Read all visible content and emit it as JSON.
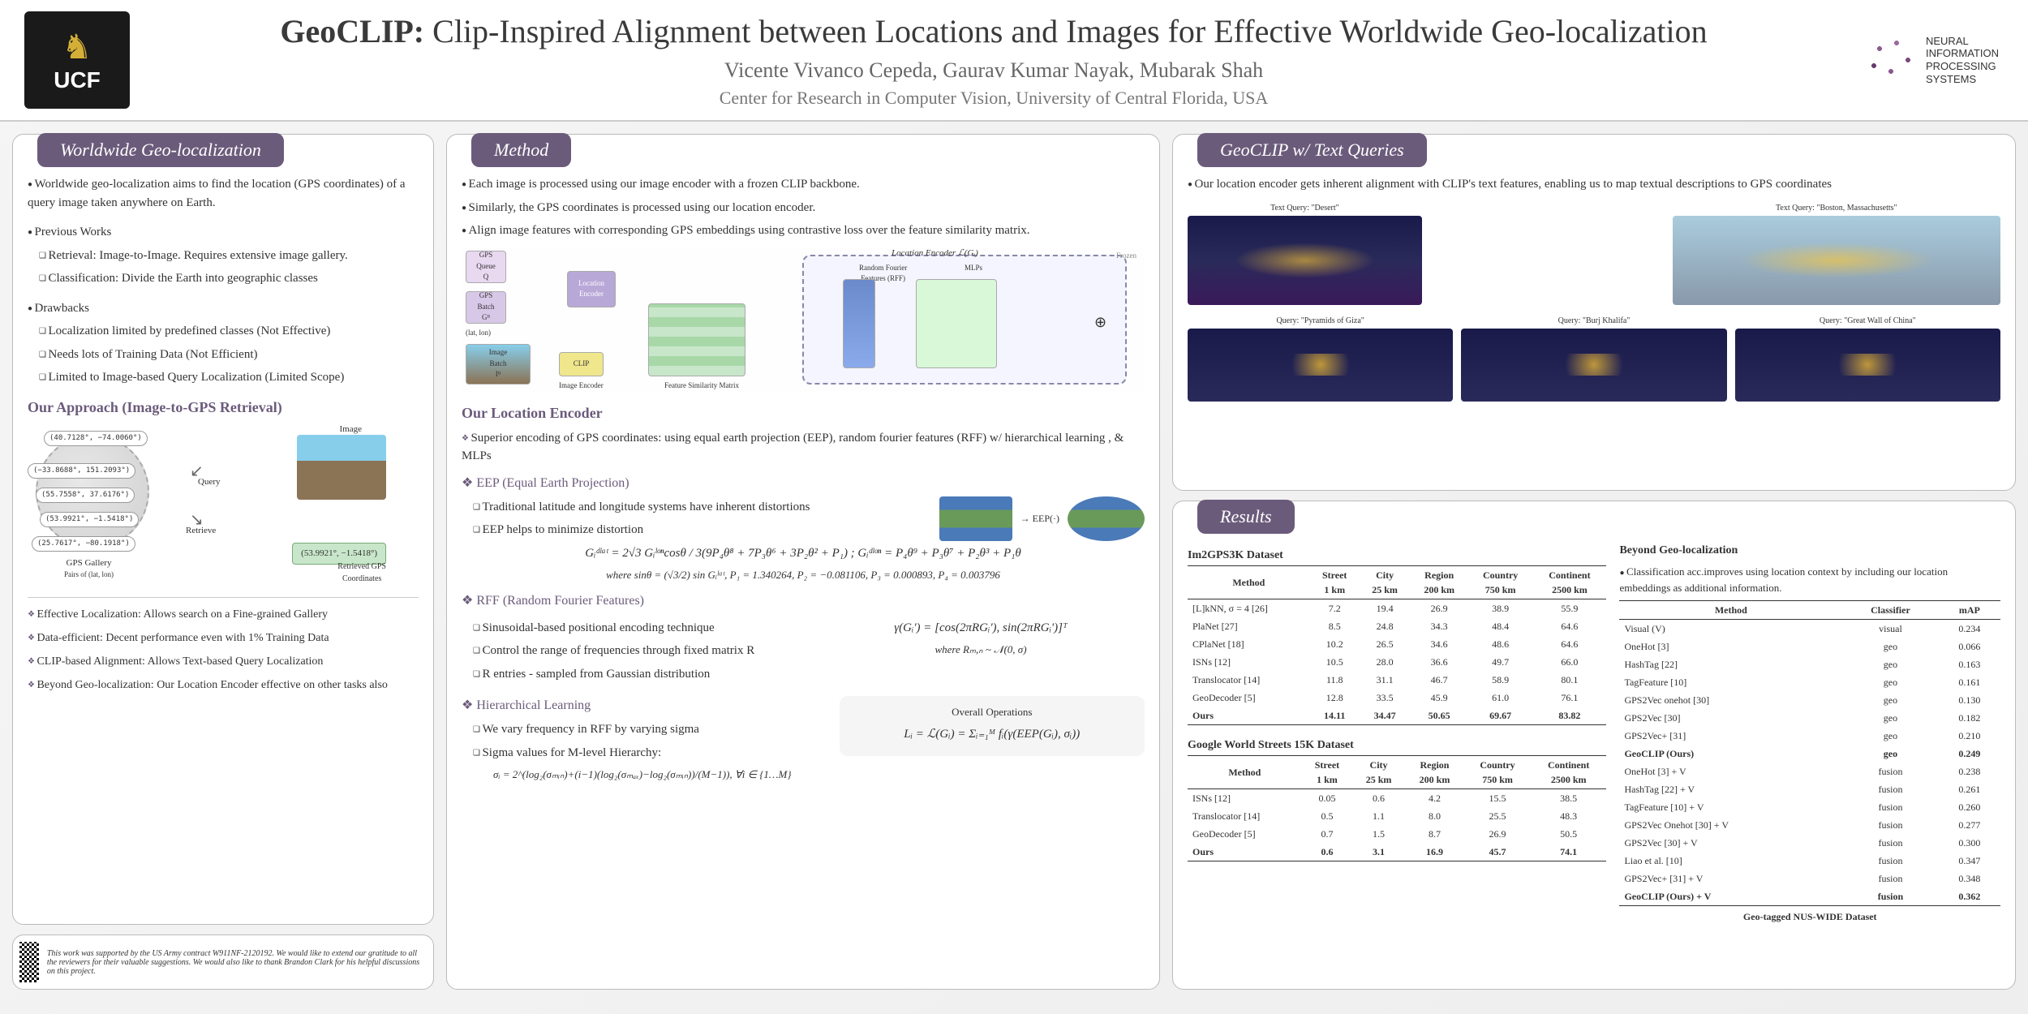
{
  "header": {
    "title_bold": "GeoCLIP:",
    "title_rest": " Clip-Inspired Alignment between Locations and Images for Effective Worldwide Geo-localization",
    "authors": "Vicente Vivanco Cepeda, Gaurav Kumar Nayak, Mubarak Shah",
    "affiliation": "Center for Research in Computer Vision, University of Central Florida, USA",
    "ucf_label": "UCF",
    "neurips": "NEURAL\nINFORMATION\nPROCESSING\nSYSTEMS"
  },
  "panels": {
    "geoloc": {
      "title": "Worldwide Geo-localization",
      "intro": "Worldwide geo-localization aims to  find  the location (GPS coordinates) of a query image taken anywhere on Earth.",
      "prev_works_label": "Previous Works",
      "prev_works": [
        "Retrieval: Image-to-Image. Requires extensive image gallery.",
        "Classification: Divide the Earth into geographic classes"
      ],
      "drawbacks_label": "Drawbacks",
      "drawbacks": [
        "Localization limited by predefined classes (Not Effective)",
        "Needs lots of Training Data (Not Efficient)",
        "Limited to Image-based Query Localization (Limited Scope)"
      ],
      "approach_title": "Our Approach (Image-to-GPS Retrieval)",
      "coords": [
        "(40.7128°, −74.0060°)",
        "(−33.8688°, 151.2093°)",
        "(55.7558°, 37.6176°)",
        "(53.9921°, −1.5418°)",
        "(25.7617°, −80.1918°)"
      ],
      "gps_gallery": "GPS Gallery",
      "pairs": "Pairs of (lat, lon)",
      "image_label": "Image",
      "query_label": "Query",
      "retrieve_label": "Retrieve",
      "retrieved": "(53.9921°, −1.5418°)",
      "retrieved_label": "Retrieved GPS\nCoordinates",
      "highlights": [
        "Effective Localization: Allows search on a Fine-grained Gallery",
        "Data-efficient: Decent performance even with 1% Training Data",
        "CLIP-based Alignment: Allows Text-based Query Localization",
        "Beyond Geo-localization:  Our Location Encoder effective on other tasks also"
      ]
    },
    "method": {
      "title": "Method",
      "bullets": [
        "Each image is processed using our image encoder with a frozen CLIP  backbone.",
        "Similarly, the GPS coordinates is processed using our location encoder.",
        "Align image features with corresponding GPS embeddings using contrastive loss over the feature similarity matrix."
      ],
      "diagram_labels": {
        "gps_queue": "GPS\nQueue\nQ",
        "gps_batch": "GPS\nBatch\nGᴮ",
        "latlon": "(lat, lon)",
        "loc_enc": "Location\nEncoder",
        "img_batch": "Image\nBatch\nIᴮ",
        "clip": "CLIP",
        "img_enc": "Image Encoder",
        "fsm": "Feature Similarity Matrix",
        "loc_enc_title": "Location Encoder  ℒ(Gᵢ)",
        "rff": "Random Fourier\nFeatures (RFF)",
        "mlps": "MLPs",
        "frozen": "Frozen"
      },
      "loc_encoder_title": "Our Location Encoder",
      "loc_encoder_desc": "Superior encoding of GPS coordinates: using equal earth projection (EEP), random fourier features (RFF) w/ hierarchical learning , & MLPs",
      "eep_title": "EEP (Equal Earth Projection)",
      "eep_bullets": [
        "Traditional latitude and longitude systems have inherent distortions",
        "EEP helps to minimize distortion"
      ],
      "eep_arrow": "EEP(·)",
      "eep_formula": "Gᵢᵈˡᵃᵗ = 2√3 Gᵢˡᵒⁿcosθ / 3(9P₄θ⁸ + 7P₃θ⁶ + 3P₂θ² + P₁) ;  Gᵢᵈˡᵒⁿ = P₄θ⁹ + P₃θ⁷ + P₂θ³ + P₁θ",
      "eep_where": "where  sinθ = (√3/2) sin Gᵢˡᵃᵗ, P₁ = 1.340264, P₂ = −0.081106, P₃ = 0.000893, P₄ = 0.003796",
      "rff_title": "RFF (Random Fourier Features)",
      "rff_bullets": [
        "Sinusoidal-based positional encoding technique",
        "Control the range of frequencies through fixed matrix R",
        "R entries - sampled from Gaussian distribution"
      ],
      "rff_formula": "γ(Gᵢ') = [cos(2πRGᵢ'), sin(2πRGᵢ')]ᵀ",
      "rff_where": "where  Rₘ,ₙ ~ 𝒩(0, σ)",
      "hier_title": "Hierarchical Learning",
      "hier_bullets": [
        "We vary frequency in RFF by varying sigma",
        "Sigma values for M-level Hierarchy:"
      ],
      "hier_formula": "σᵢ = 2^(log₂(σₘᵢₙ)+(i−1)(log₂(σₘₐₓ)−log₂(σₘᵢₙ))/(M−1)),   ∀i ∈ {1…M}",
      "overall_title": "Overall Operations",
      "overall_formula": "Lᵢ = ℒ(Gᵢ) = Σᵢ₌₁ᴹ fᵢ(γ(EEP(Gᵢ), σᵢ))"
    },
    "text_queries": {
      "title": "GeoCLIP w/ Text Queries",
      "desc": "Our location encoder gets inherent alignment with CLIP's text features, enabling us to map textual descriptions to GPS coordinates",
      "q1": "Text Query: \"Desert\"",
      "q2": "Text Query: \"Boston, Massachusetts\"",
      "q3": "Query: \"Pyramids of Giza\"",
      "q4": "Query: \"Burj Khalifa\"",
      "q5": "Query: \"Great Wall of China\""
    },
    "results": {
      "title": "Results",
      "t1_title": "Im2GPS3K Dataset",
      "headers": [
        "Method",
        "Street\n1 km",
        "City\n25 km",
        "Region\n200 km",
        "Country\n750 km",
        "Continent\n2500 km"
      ],
      "t1_rows": [
        [
          "[L]kNN, σ = 4 [26]",
          "7.2",
          "19.4",
          "26.9",
          "38.9",
          "55.9"
        ],
        [
          "PlaNet [27]",
          "8.5",
          "24.8",
          "34.3",
          "48.4",
          "64.6"
        ],
        [
          "CPlaNet [18]",
          "10.2",
          "26.5",
          "34.6",
          "48.6",
          "64.6"
        ],
        [
          "ISNs [12]",
          "10.5",
          "28.0",
          "36.6",
          "49.7",
          "66.0"
        ],
        [
          "Translocator [14]",
          "11.8",
          "31.1",
          "46.7",
          "58.9",
          "80.1"
        ],
        [
          "GeoDecoder [5]",
          "12.8",
          "33.5",
          "45.9",
          "61.0",
          "76.1"
        ],
        [
          "Ours",
          "14.11",
          "34.47",
          "50.65",
          "69.67",
          "83.82"
        ]
      ],
      "t2_title": "Google World Streets 15K Dataset",
      "t2_rows": [
        [
          "ISNs [12]",
          "0.05",
          "0.6",
          "4.2",
          "15.5",
          "38.5"
        ],
        [
          "Translocator [14]",
          "0.5",
          "1.1",
          "8.0",
          "25.5",
          "48.3"
        ],
        [
          "GeoDecoder [5]",
          "0.7",
          "1.5",
          "8.7",
          "26.9",
          "50.5"
        ],
        [
          "Ours",
          "0.6",
          "3.1",
          "16.9",
          "45.7",
          "74.1"
        ]
      ],
      "beyond_title": "Beyond Geo-localization",
      "beyond_desc": "Classification acc.improves  using location context by including our location embeddings as additional information.",
      "t3_headers": [
        "Method",
        "Classifier",
        "mAP"
      ],
      "t3_rows": [
        [
          "Visual (V)",
          "visual",
          "0.234"
        ],
        [
          "OneHot [3]",
          "geo",
          "0.066"
        ],
        [
          "HashTag [22]",
          "geo",
          "0.163"
        ],
        [
          "TagFeature [10]",
          "geo",
          "0.161"
        ],
        [
          "GPS2Vec onehot [30]",
          "geo",
          "0.130"
        ],
        [
          "GPS2Vec [30]",
          "geo",
          "0.182"
        ],
        [
          "GPS2Vec+ [31]",
          "geo",
          "0.210"
        ],
        [
          "GeoCLIP (Ours)",
          "geo",
          "0.249"
        ],
        [
          "OneHot [3] + V",
          "fusion",
          "0.238"
        ],
        [
          "HashTag [22] + V",
          "fusion",
          "0.261"
        ],
        [
          "TagFeature [10] + V",
          "fusion",
          "0.260"
        ],
        [
          "GPS2Vec Onehot [30] + V",
          "fusion",
          "0.277"
        ],
        [
          "GPS2Vec [30] + V",
          "fusion",
          "0.300"
        ],
        [
          "Liao et al. [10]",
          "fusion",
          "0.347"
        ],
        [
          "GPS2Vec+ [31] + V",
          "fusion",
          "0.348"
        ],
        [
          "GeoCLIP (Ours) + V",
          "fusion",
          "0.362"
        ]
      ],
      "t3_caption": "Geo-tagged NUS-WIDE Dataset"
    }
  },
  "footer": {
    "ack": "This work was supported by the US Army contract W911NF-2120192. We would like to extend our gratitude to all the reviewers for their valuable suggestions. We would also like to thank Brandon Clark for his helpful discussions on this project."
  }
}
